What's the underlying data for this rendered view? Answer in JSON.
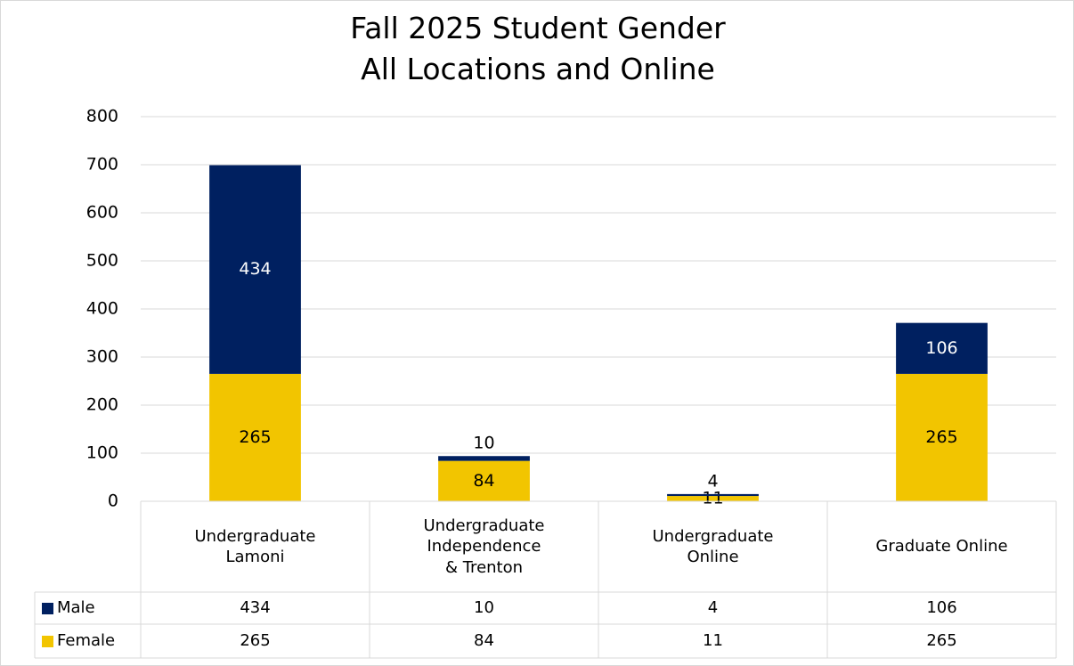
{
  "chart_data": {
    "type": "stacked_bar",
    "title": "Fall 2025 Student Gender\nAll Locations and Online",
    "categories": [
      "Undergraduate\nLamoni",
      "Undergraduate\nIndependence\n& Trenton",
      "Undergraduate\nOnline",
      "Graduate Online"
    ],
    "series": [
      {
        "name": "Male",
        "color": "#002060",
        "values": [
          434,
          10,
          4,
          106
        ]
      },
      {
        "name": "Female",
        "color": "#f2c500",
        "values": [
          265,
          84,
          11,
          265
        ]
      }
    ],
    "ylim": [
      0,
      800
    ],
    "yticks": [
      0,
      100,
      200,
      300,
      400,
      500,
      600,
      700,
      800
    ],
    "grid": true
  }
}
